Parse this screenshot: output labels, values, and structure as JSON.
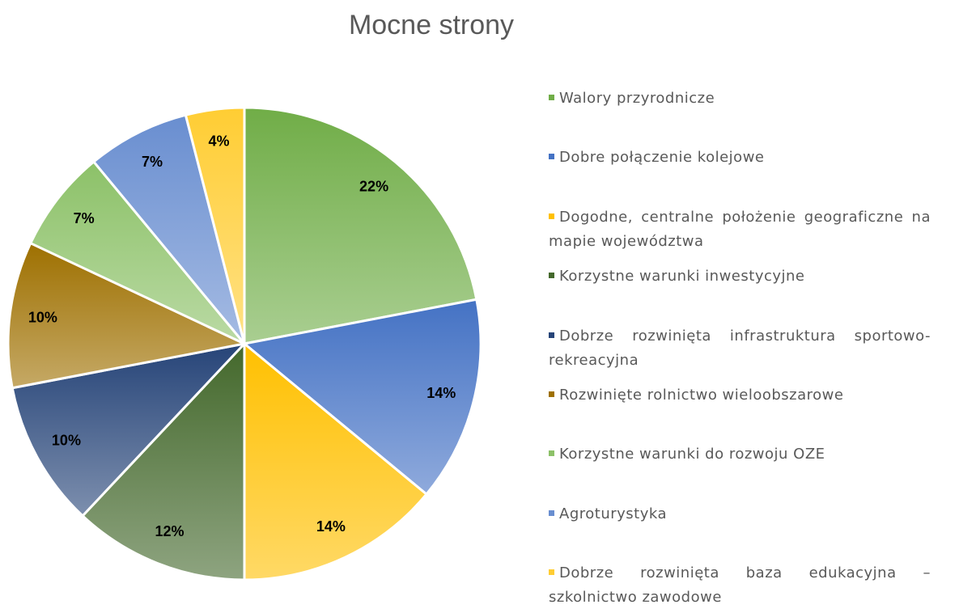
{
  "chart_data": {
    "type": "pie",
    "title": "Mocne strony",
    "categories": [
      "Walory przyrodnicze",
      "Dobre połączenie kolejowe",
      "Dogodne, centralne położenie geograficzne na mapie województwa",
      "Korzystne warunki inwestycyjne",
      "Dobrze rozwinięta infrastruktura sportowo-rekreacyjna",
      "Rozwinięte rolnictwo wieloobszarowe",
      "Korzystne warunki do rozwoju OZE",
      "Agroturystyka",
      "Dobrze rozwinięta baza edukacyjna – szkolnictwo zawodowe"
    ],
    "values": [
      22,
      14,
      14,
      12,
      10,
      10,
      7,
      7,
      4
    ],
    "value_labels": [
      "22%",
      "14%",
      "14%",
      "12%",
      "10%",
      "10%",
      "7%",
      "7%",
      "4%"
    ],
    "colors": [
      "#70ad47",
      "#4472c4",
      "#ffc000",
      "#43682b",
      "#264478",
      "#9e7000",
      "#8cc168",
      "#698ed0",
      "#ffcd33"
    ],
    "legend": "right"
  }
}
